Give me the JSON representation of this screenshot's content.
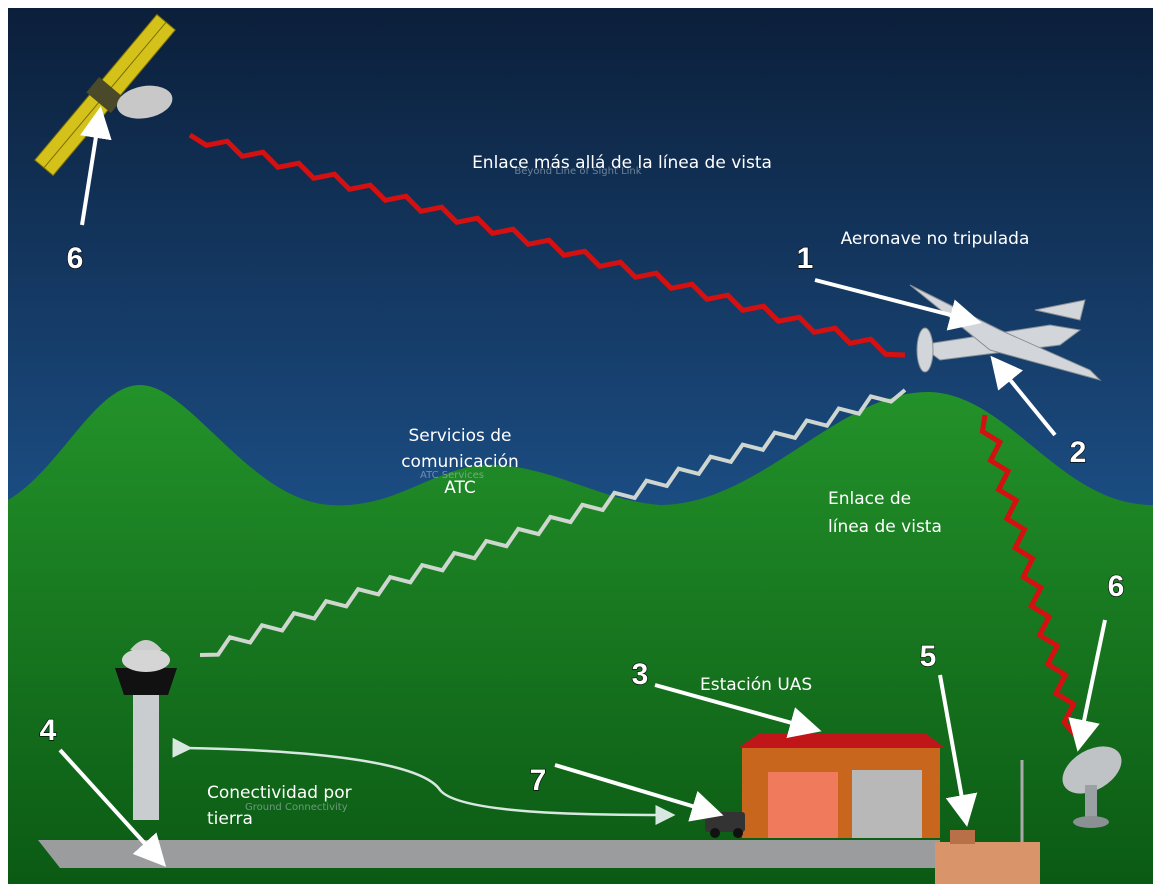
{
  "links": {
    "beyond_line_of_sight": "Enlace más allá de la línea de vista",
    "beyond_line_of_sight_ghost": "Beyond Line of Sight Link",
    "atc_services": [
      "Servicios de",
      "comunicación",
      "ATC"
    ],
    "atc_services_ghost": "ATC Services",
    "line_of_sight": [
      "Enlace de",
      "línea de vista"
    ],
    "ground_connectivity": [
      "Conectividad por",
      "tierra"
    ],
    "ground_connectivity_ghost": "Ground Connectivity"
  },
  "elements": {
    "aircraft": "Aeronave no tripulada",
    "station": "Estación UAS"
  },
  "callouts": [
    "6",
    "1",
    "2",
    "6",
    "5",
    "3",
    "7",
    "4"
  ]
}
